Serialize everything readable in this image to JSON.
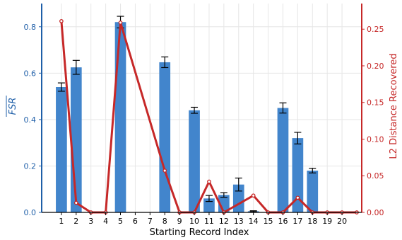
{
  "chart_data": {
    "type": "bar",
    "categories": [
      "1",
      "2",
      "3",
      "4",
      "5",
      "6",
      "7",
      "8",
      "9",
      "10",
      "11",
      "12",
      "13",
      "14",
      "15",
      "16",
      "17",
      "18",
      "19",
      "20"
    ],
    "xlabel": "Starting Record Index",
    "ylabel_left": "FSR",
    "ylabel_right": "L2 Distance Recovered",
    "ylim_left": [
      0,
      0.9
    ],
    "ylim_right": [
      0,
      0.285
    ],
    "yticks_left": [
      "0.0",
      "0.2",
      "0.4",
      "0.6",
      "0.8"
    ],
    "yticks_right": [
      "0.00",
      "0.05",
      "0.10",
      "0.15",
      "0.20",
      "0.25"
    ],
    "grid": true,
    "colors": {
      "bars": "#4285cc",
      "line": "#c62828",
      "left_axis": "#1f5fa8",
      "right_axis": "#c62828",
      "errorbar": "#000000"
    },
    "series": [
      {
        "kind": "bar",
        "axis": "left",
        "x": [
          1,
          2,
          5,
          8,
          10,
          11,
          12,
          13,
          14,
          16,
          17,
          18
        ],
        "values": [
          0.54,
          0.625,
          0.82,
          0.647,
          0.44,
          0.06,
          0.075,
          0.12,
          0.005,
          0.45,
          0.32,
          0.18
        ],
        "errors": [
          0.018,
          0.03,
          0.025,
          0.023,
          0.013,
          0.013,
          0.01,
          0.028,
          0.002,
          0.022,
          0.025,
          0.01
        ]
      },
      {
        "kind": "line",
        "axis": "right",
        "x": [
          1,
          2,
          3,
          4,
          5,
          8,
          9,
          10,
          11,
          12,
          14,
          15,
          16,
          17,
          18,
          19,
          20,
          21
        ],
        "values": [
          0.261,
          0.013,
          0.0,
          0.0,
          0.259,
          0.057,
          0.0,
          0.0,
          0.042,
          0.0,
          0.023,
          0.0,
          0.0,
          0.02,
          0.0,
          0.0,
          0.0,
          0.0
        ]
      }
    ]
  }
}
